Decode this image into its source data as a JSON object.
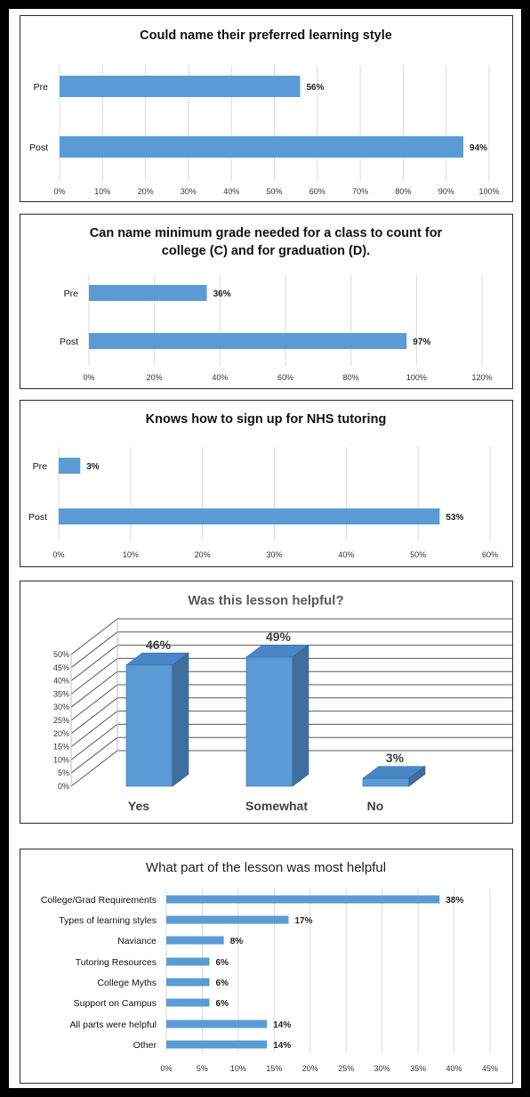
{
  "chart_data": [
    {
      "type": "bar",
      "orientation": "horizontal",
      "title": "Could name their preferred learning style",
      "categories": [
        "Pre",
        "Post"
      ],
      "values": [
        56,
        94
      ],
      "data_labels": [
        "56%",
        "94%"
      ],
      "xlim": [
        0,
        100
      ],
      "xticks": [
        "0%",
        "10%",
        "20%",
        "30%",
        "40%",
        "50%",
        "60%",
        "70%",
        "80%",
        "90%",
        "100%"
      ],
      "grid": true,
      "color": "#5b9bd5"
    },
    {
      "type": "bar",
      "orientation": "horizontal",
      "title": "Can name minimum grade needed for a class to count for college (C) and for graduation (D).",
      "title_lines": [
        "Can name minimum grade needed for a class to count for",
        "college (C) and for graduation (D)."
      ],
      "categories": [
        "Pre",
        "Post"
      ],
      "values": [
        36,
        97
      ],
      "data_labels": [
        "36%",
        "97%"
      ],
      "xlim": [
        0,
        120
      ],
      "xticks": [
        "0%",
        "20%",
        "40%",
        "60%",
        "80%",
        "100%",
        "120%"
      ],
      "grid": true,
      "color": "#5b9bd5"
    },
    {
      "type": "bar",
      "orientation": "horizontal",
      "title": "Knows how to sign up for NHS tutoring",
      "categories": [
        "Pre",
        "Post"
      ],
      "values": [
        3,
        53
      ],
      "data_labels": [
        "3%",
        "53%"
      ],
      "xlim": [
        0,
        60
      ],
      "xticks": [
        "0%",
        "10%",
        "20%",
        "30%",
        "40%",
        "50%",
        "60%"
      ],
      "grid": true,
      "color": "#5b9bd5"
    },
    {
      "type": "bar",
      "style": "3d-column",
      "title": "Was this lesson helpful?",
      "categories": [
        "Yes",
        "Somewhat",
        "No"
      ],
      "values": [
        46,
        49,
        3
      ],
      "data_labels": [
        "46%",
        "49%",
        "3%"
      ],
      "ylim": [
        0,
        50
      ],
      "yticks": [
        "0%",
        "5%",
        "10%",
        "15%",
        "20%",
        "25%",
        "30%",
        "35%",
        "40%",
        "45%",
        "50%"
      ],
      "grid": true,
      "color": "#5b9bd5"
    },
    {
      "type": "bar",
      "orientation": "horizontal",
      "title": "What part of the lesson was most helpful",
      "categories": [
        "College/Grad Requirements",
        "Types of learning styles",
        "Naviance",
        "Tutoring Resources",
        "College Myths",
        "Support on Campus",
        "All parts were helpful",
        "Other"
      ],
      "values": [
        38,
        17,
        8,
        6,
        6,
        6,
        14,
        14
      ],
      "data_labels": [
        "38%",
        "17%",
        "8%",
        "6%",
        "6%",
        "6%",
        "14%",
        "14%"
      ],
      "xlim": [
        0,
        45
      ],
      "xticks": [
        "0%",
        "5%",
        "10%",
        "15%",
        "20%",
        "25%",
        "30%",
        "35%",
        "40%",
        "45%"
      ],
      "grid": true,
      "color": "#5b9bd5"
    }
  ]
}
